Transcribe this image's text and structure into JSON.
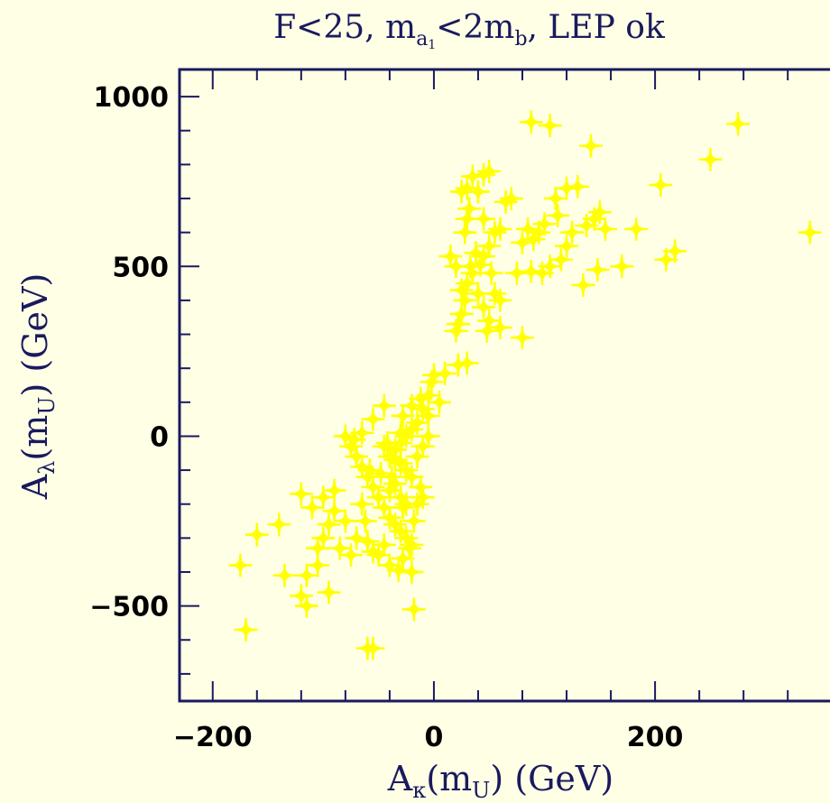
{
  "chart_data": {
    "type": "scatter",
    "title": {
      "base": "F<25, m",
      "sub_a": "a",
      "sub_a_idx": "1",
      "mid": "<2m",
      "sub_b": "b",
      "tail": ", LEP ok"
    },
    "xlabel": {
      "base": "A",
      "sub": "κ",
      "mid": "(m",
      "sub2": "U",
      "tail": ")  (GeV)"
    },
    "ylabel": {
      "base": "A",
      "sub": "λ",
      "mid": "(m",
      "sub2": "U",
      "tail": ")  (GeV)"
    },
    "xlim": [
      -230,
      390
    ],
    "ylim": [
      -780,
      1080
    ],
    "x_ticks": [
      -200,
      0,
      200
    ],
    "x_tick_labels": [
      "−200",
      "0",
      "200"
    ],
    "y_ticks": [
      -500,
      0,
      500,
      1000
    ],
    "y_tick_labels": [
      "−500",
      "0",
      "500",
      "1000"
    ],
    "x_minor_step": 40,
    "y_minor_step": 100,
    "marker_color": "#ffff00",
    "axis_color": "#1a1a5e",
    "points": [
      [
        88,
        925
      ],
      [
        105,
        915
      ],
      [
        275,
        920
      ],
      [
        142,
        855
      ],
      [
        250,
        815
      ],
      [
        205,
        740
      ],
      [
        340,
        600
      ],
      [
        218,
        545
      ],
      [
        210,
        520
      ],
      [
        183,
        610
      ],
      [
        170,
        500
      ],
      [
        148,
        490
      ],
      [
        135,
        445
      ],
      [
        150,
        660
      ],
      [
        145,
        640
      ],
      [
        120,
        730
      ],
      [
        130,
        735
      ],
      [
        110,
        700
      ],
      [
        112,
        650
      ],
      [
        100,
        625
      ],
      [
        95,
        600
      ],
      [
        90,
        580
      ],
      [
        85,
        610
      ],
      [
        80,
        570
      ],
      [
        105,
        500
      ],
      [
        98,
        480
      ],
      [
        88,
        485
      ],
      [
        75,
        480
      ],
      [
        125,
        600
      ],
      [
        120,
        560
      ],
      [
        138,
        620
      ],
      [
        155,
        610
      ],
      [
        115,
        520
      ],
      [
        70,
        700
      ],
      [
        65,
        690
      ],
      [
        60,
        610
      ],
      [
        55,
        600
      ],
      [
        50,
        560
      ],
      [
        45,
        640
      ],
      [
        40,
        720
      ],
      [
        45,
        770
      ],
      [
        50,
        780
      ],
      [
        35,
        765
      ],
      [
        30,
        730
      ],
      [
        25,
        720
      ],
      [
        32,
        670
      ],
      [
        30,
        640
      ],
      [
        28,
        600
      ],
      [
        38,
        540
      ],
      [
        42,
        505
      ],
      [
        35,
        480
      ],
      [
        30,
        450
      ],
      [
        25,
        430
      ],
      [
        28,
        400
      ],
      [
        40,
        420
      ],
      [
        45,
        380
      ],
      [
        55,
        420
      ],
      [
        60,
        400
      ],
      [
        50,
        340
      ],
      [
        60,
        320
      ],
      [
        48,
        310
      ],
      [
        80,
        290
      ],
      [
        22,
        330
      ],
      [
        20,
        310
      ],
      [
        25,
        360
      ],
      [
        15,
        530
      ],
      [
        20,
        500
      ],
      [
        33,
        500
      ],
      [
        45,
        530
      ],
      [
        52,
        480
      ],
      [
        22,
        210
      ],
      [
        30,
        215
      ],
      [
        10,
        185
      ],
      [
        0,
        180
      ],
      [
        -2,
        160
      ],
      [
        -5,
        120
      ],
      [
        5,
        100
      ],
      [
        -10,
        80
      ],
      [
        -5,
        60
      ],
      [
        -15,
        40
      ],
      [
        -20,
        20
      ],
      [
        -25,
        0
      ],
      [
        -30,
        -20
      ],
      [
        -35,
        -40
      ],
      [
        -40,
        -60
      ],
      [
        -45,
        -30
      ],
      [
        -30,
        -80
      ],
      [
        -25,
        -100
      ],
      [
        -20,
        -120
      ],
      [
        -35,
        -140
      ],
      [
        -40,
        -160
      ],
      [
        -30,
        -180
      ],
      [
        -25,
        -200
      ],
      [
        -45,
        -210
      ],
      [
        -40,
        -240
      ],
      [
        -35,
        -260
      ],
      [
        -30,
        -280
      ],
      [
        -25,
        -300
      ],
      [
        -20,
        -320
      ],
      [
        -50,
        -180
      ],
      [
        -55,
        -150
      ],
      [
        -60,
        -120
      ],
      [
        -65,
        -90
      ],
      [
        -70,
        -60
      ],
      [
        -75,
        -30
      ],
      [
        -80,
        0
      ],
      [
        -15,
        -60
      ],
      [
        -10,
        -30
      ],
      [
        -5,
        0
      ],
      [
        -12,
        -150
      ],
      [
        -18,
        -250
      ],
      [
        -22,
        -330
      ],
      [
        -28,
        -360
      ],
      [
        -32,
        -395
      ],
      [
        -20,
        -400
      ],
      [
        -45,
        -320
      ],
      [
        -55,
        -340
      ],
      [
        -60,
        -310
      ],
      [
        -70,
        -300
      ],
      [
        -80,
        -250
      ],
      [
        -90,
        -220
      ],
      [
        -95,
        -260
      ],
      [
        -100,
        -300
      ],
      [
        -105,
        -330
      ],
      [
        -85,
        -330
      ],
      [
        -75,
        -350
      ],
      [
        -110,
        -210
      ],
      [
        -120,
        -170
      ],
      [
        -100,
        -180
      ],
      [
        -90,
        -160
      ],
      [
        -105,
        -380
      ],
      [
        -115,
        -410
      ],
      [
        -135,
        -410
      ],
      [
        -120,
        -470
      ],
      [
        -115,
        -500
      ],
      [
        -95,
        -460
      ],
      [
        -140,
        -260
      ],
      [
        -160,
        -290
      ],
      [
        -175,
        -380
      ],
      [
        -170,
        -570
      ],
      [
        -60,
        -625
      ],
      [
        -55,
        -625
      ],
      [
        -18,
        -510
      ],
      [
        -40,
        -380
      ],
      [
        -50,
        -350
      ],
      [
        -62,
        -250
      ],
      [
        -65,
        -200
      ],
      [
        -58,
        -100
      ],
      [
        -48,
        -110
      ],
      [
        -38,
        -120
      ],
      [
        -42,
        -20
      ],
      [
        -30,
        10
      ],
      [
        -28,
        60
      ],
      [
        -20,
        90
      ],
      [
        -12,
        110
      ],
      [
        -45,
        90
      ],
      [
        -55,
        50
      ],
      [
        -65,
        10
      ],
      [
        -72,
        -10
      ],
      [
        -35,
        -70
      ],
      [
        -28,
        -210
      ],
      [
        -15,
        -200
      ],
      [
        -10,
        -180
      ]
    ]
  }
}
